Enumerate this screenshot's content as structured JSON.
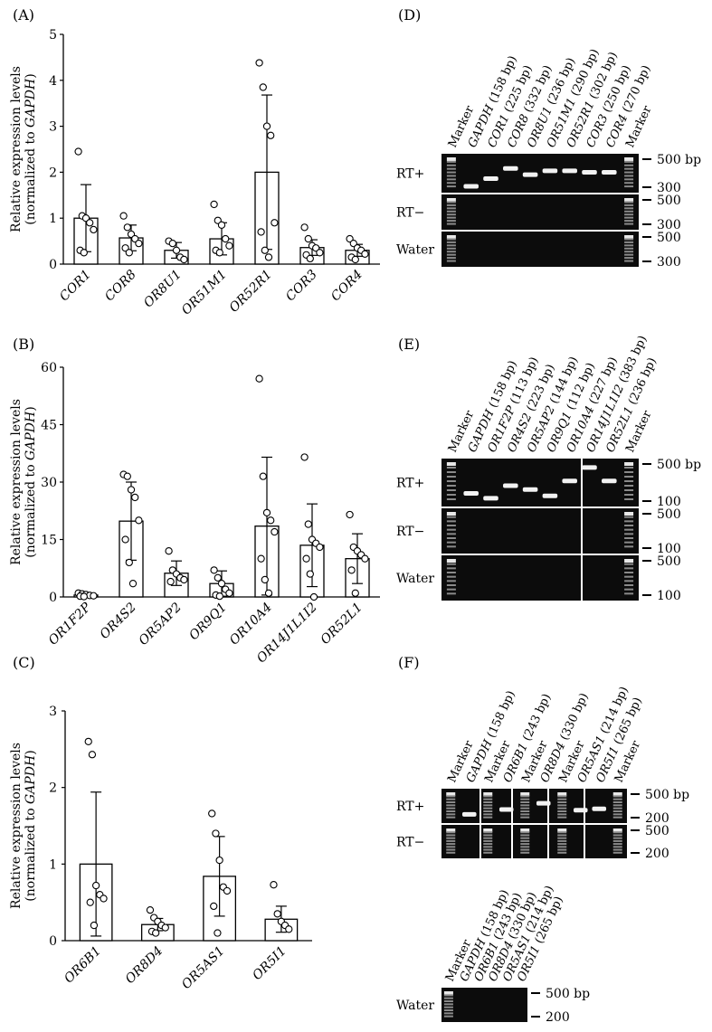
{
  "ylabel_line1": "Relative expression levels",
  "ylabel_line2_prefix": "(normalized to ",
  "ylabel_line2_gene": "GAPDH",
  "ylabel_line2_suffix": ")",
  "chart_data": [
    {
      "panel": "(A)",
      "type": "bar",
      "categories": [
        "COR1",
        "COR8",
        "OR8U1",
        "OR51M1",
        "OR52R1",
        "COR3",
        "COR4"
      ],
      "values": [
        1.0,
        0.57,
        0.3,
        0.55,
        2.0,
        0.36,
        0.3
      ],
      "errors": [
        0.73,
        0.28,
        0.17,
        0.35,
        1.68,
        0.17,
        0.13
      ],
      "points": [
        [
          2.45,
          1.05,
          1.0,
          0.9,
          0.75,
          0.3,
          0.25
        ],
        [
          1.05,
          0.8,
          0.65,
          0.55,
          0.45,
          0.35,
          0.25
        ],
        [
          0.5,
          0.45,
          0.3,
          0.15,
          0.1
        ],
        [
          1.3,
          0.95,
          0.85,
          0.55,
          0.4,
          0.3,
          0.25
        ],
        [
          4.38,
          3.85,
          3.0,
          2.8,
          0.9,
          0.7,
          0.3,
          0.15
        ],
        [
          0.8,
          0.55,
          0.4,
          0.35,
          0.25,
          0.2,
          0.12
        ],
        [
          0.55,
          0.45,
          0.35,
          0.3,
          0.22,
          0.15,
          0.1
        ]
      ],
      "ylim": [
        0,
        5
      ],
      "yticks": [
        0,
        1,
        2,
        3,
        4,
        5
      ],
      "xlabel": "",
      "ylabel": "Relative expression levels (normalized to GAPDH)"
    },
    {
      "panel": "(B)",
      "type": "bar",
      "categories": [
        "OR1F2P",
        "OR4S2",
        "OR5AP2",
        "OR9Q1",
        "OR10A4",
        "OR14J1L1I2",
        "OR52L1"
      ],
      "values": [
        0.5,
        19.8,
        6.2,
        3.5,
        18.5,
        13.5,
        10.0
      ],
      "errors": [
        0.3,
        10.2,
        3.2,
        3.3,
        18.0,
        10.8,
        6.5
      ],
      "points": [
        [
          1.0,
          0.8,
          0.6,
          0.4,
          0.3,
          0.2,
          0.1
        ],
        [
          32.0,
          31.5,
          28.0,
          26.0,
          20.0,
          15.0,
          9.0,
          3.5
        ],
        [
          12.0,
          7.0,
          6.0,
          5.0,
          4.5,
          4.0
        ],
        [
          7.0,
          5.0,
          3.5,
          2.0,
          1.0,
          0.5,
          0.2
        ],
        [
          57.0,
          31.5,
          22.0,
          20.0,
          17.0,
          10.0,
          4.5,
          1.0
        ],
        [
          36.5,
          19.0,
          15.0,
          14.0,
          13.0,
          10.0,
          6.0,
          0.0
        ],
        [
          21.5,
          13.0,
          12.0,
          11.0,
          10.0,
          7.0,
          1.0
        ]
      ],
      "ylim": [
        0,
        60
      ],
      "yticks": [
        0,
        15,
        30,
        45,
        60
      ],
      "xlabel": "",
      "ylabel": "Relative expression levels (normalized to GAPDH)"
    },
    {
      "panel": "(C)",
      "type": "bar",
      "categories": [
        "OR6B1",
        "OR8D4",
        "OR5AS1",
        "OR5I1"
      ],
      "values": [
        1.0,
        0.21,
        0.84,
        0.28
      ],
      "errors": [
        0.94,
        0.08,
        0.52,
        0.17
      ],
      "points": [
        [
          2.6,
          2.43,
          0.72,
          0.6,
          0.55,
          0.5,
          0.2
        ],
        [
          0.4,
          0.3,
          0.25,
          0.2,
          0.17,
          0.12,
          0.1
        ],
        [
          1.66,
          1.4,
          1.05,
          0.7,
          0.65,
          0.45,
          0.1
        ],
        [
          0.73,
          0.35,
          0.25,
          0.2,
          0.15
        ]
      ],
      "ylim": [
        0,
        3
      ],
      "yticks": [
        0,
        1,
        2,
        3
      ],
      "xlabel": "",
      "ylabel": "Relative expression levels (normalized to GAPDH)"
    }
  ],
  "gels": {
    "D": {
      "label": "(D)",
      "lanes": [
        "Marker",
        "GAPDH (158 bp)",
        "COR1 (225 bp)",
        "COR8 (332 bp)",
        "OR8U1 (236 bp)",
        "OR51M1 (290 bp)",
        "OR52R1 (302 bp)",
        "COR3 (250 bp)",
        "COR4 (270 bp)",
        "Marker"
      ],
      "rows": [
        "RT+",
        "RT−",
        "Water"
      ],
      "size_labels": [
        [
          "500 bp",
          "300"
        ],
        [
          "500",
          "300"
        ],
        [
          "500",
          "300"
        ]
      ]
    },
    "E": {
      "label": "(E)",
      "lanes": [
        "Marker",
        "GAPDH (158 bp)",
        "OR1F2P (113 bp)",
        "OR4S2 (223 bp)",
        "OR5AP2 (144 bp)",
        "OR9Q1 (112 bp)",
        "OR10A4 (227 bp)",
        "OR14J1L1I2 (383 bp)",
        "OR52L1 (236 bp)",
        "Marker"
      ],
      "rows": [
        "RT+",
        "RT−",
        "Water"
      ],
      "size_labels": [
        [
          "500 bp",
          "100"
        ],
        [
          "500",
          "100"
        ],
        [
          "500",
          "100"
        ]
      ]
    },
    "F": {
      "label": "(F)",
      "lanes": [
        "Marker",
        "GAPDH (158 bp)",
        "Marker",
        "OR6B1 (243 bp)",
        "Marker",
        "OR8D4 (330 bp)",
        "Marker",
        "OR5AS1 (214 bp)",
        "OR5I1 (265 bp)",
        "Marker"
      ],
      "rows": [
        "RT+",
        "RT−"
      ],
      "size_labels": [
        [
          "500 bp",
          "200"
        ],
        [
          "500",
          "200"
        ]
      ]
    },
    "Fw": {
      "lanes": [
        "Marker",
        "GAPDH (158 bp)",
        "OR6B1 (243 bp)",
        "OR8D4 (330 bp)",
        "OR5AS1 (214 bp)",
        "OR5I1 (265 bp)"
      ],
      "rows": [
        "Water"
      ],
      "size_labels": [
        [
          "500 bp",
          "200"
        ]
      ]
    }
  }
}
